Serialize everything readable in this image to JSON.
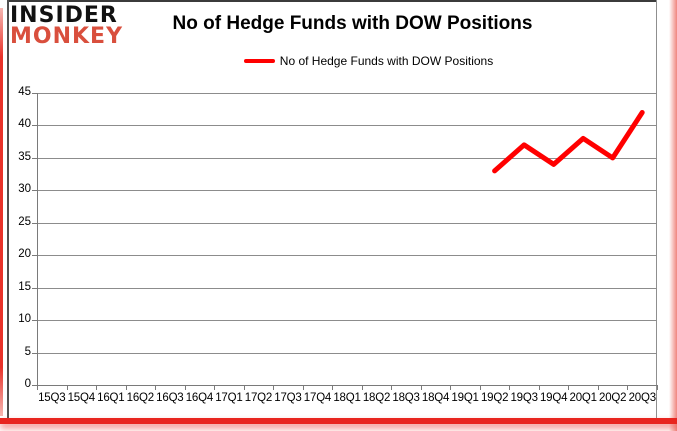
{
  "logo": {
    "line1": "INSIDER",
    "line2": "MONKEY"
  },
  "title": "No of Hedge Funds with DOW Positions",
  "legend": {
    "label": "No of Hedge Funds with DOW Positions"
  },
  "colors": {
    "series_line": "#FF0000",
    "logo_insider": "#111111",
    "logo_monkey": "#D94F3D",
    "frame_red": "#E8251F",
    "grid": "#8C8C8C"
  },
  "chart_data": {
    "type": "line",
    "title": "No of Hedge Funds with DOW Positions",
    "categories": [
      "15Q3",
      "15Q4",
      "16Q1",
      "16Q2",
      "16Q3",
      "16Q4",
      "17Q1",
      "17Q2",
      "17Q3",
      "17Q4",
      "18Q1",
      "18Q2",
      "18Q3",
      "18Q4",
      "19Q1",
      "19Q2",
      "19Q3",
      "19Q4",
      "20Q1",
      "20Q2",
      "20Q3"
    ],
    "series": [
      {
        "name": "No of Hedge Funds with DOW Positions",
        "color": "#FF0000",
        "values": [
          null,
          null,
          null,
          null,
          null,
          null,
          null,
          null,
          null,
          null,
          null,
          null,
          null,
          null,
          null,
          33,
          37,
          34,
          38,
          35,
          42
        ]
      }
    ],
    "xlabel": "",
    "ylabel": "",
    "ylim": [
      0,
      45
    ],
    "ytick_step": 5,
    "grid": true,
    "legend_position": "top-center"
  }
}
